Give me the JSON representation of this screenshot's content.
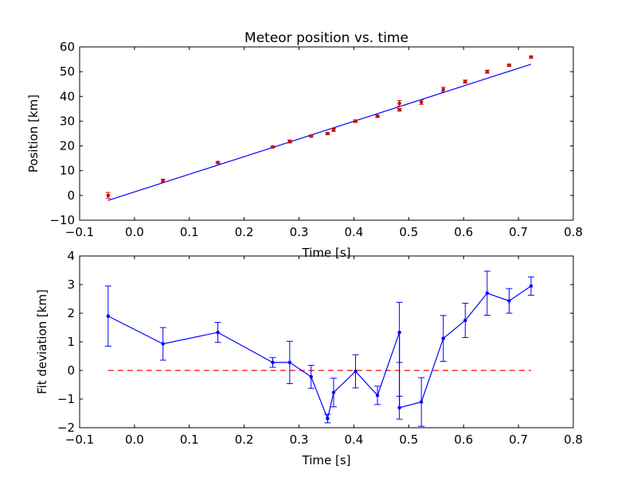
{
  "chart_data": [
    {
      "type": "scatter",
      "title": "Meteor position vs. time",
      "xlabel": "Time [s]",
      "ylabel": "Position [km]",
      "xlim": [
        -0.1,
        0.8
      ],
      "ylim": [
        -10,
        60
      ],
      "xticks": [
        "−0.1",
        "0.0",
        "0.1",
        "0.2",
        "0.3",
        "0.4",
        "0.5",
        "0.6",
        "0.7",
        "0.8"
      ],
      "yticks": [
        "−10",
        "0",
        "10",
        "20",
        "30",
        "40",
        "50",
        "60"
      ],
      "grid": false,
      "colors": {
        "points": "#ff0000",
        "fit": "#0000ff"
      },
      "series": [
        {
          "kind": "points-with-errorbars",
          "x": [
            -0.048,
            0.052,
            0.152,
            0.252,
            0.283,
            0.322,
            0.352,
            0.363,
            0.403,
            0.443,
            0.483,
            0.483,
            0.523,
            0.563,
            0.603,
            0.643,
            0.683,
            0.723
          ],
          "y": [
            0.0,
            6.0,
            13.3,
            19.6,
            21.8,
            24.0,
            25.0,
            26.5,
            30.0,
            32.0,
            37.2,
            34.6,
            37.7,
            42.8,
            46.0,
            50.0,
            52.6,
            55.9
          ],
          "yerr": [
            1.2,
            0.6,
            0.4,
            0.3,
            0.6,
            0.4,
            0.4,
            0.6,
            0.5,
            0.4,
            1.1,
            0.5,
            0.9,
            0.9,
            0.6,
            0.6,
            0.4,
            0.4
          ]
        },
        {
          "kind": "fit-line",
          "x": [
            -0.048,
            0.723
          ],
          "y": [
            -2.0,
            53.0
          ]
        }
      ]
    },
    {
      "type": "line",
      "title": "",
      "xlabel": "Time [s]",
      "ylabel": "Fit deviation [km]",
      "xlim": [
        -0.1,
        0.8
      ],
      "ylim": [
        -2,
        4
      ],
      "xticks": [
        "−0.1",
        "0.0",
        "0.1",
        "0.2",
        "0.3",
        "0.4",
        "0.5",
        "0.6",
        "0.7",
        "0.8"
      ],
      "yticks": [
        "−2",
        "−1",
        "0",
        "1",
        "2",
        "3",
        "4"
      ],
      "grid": false,
      "colors": {
        "line": "#0000ff",
        "zero": "#ff0000"
      },
      "series": [
        {
          "kind": "line-with-errorbars",
          "x": [
            -0.048,
            0.052,
            0.152,
            0.252,
            0.283,
            0.322,
            0.352,
            0.363,
            0.403,
            0.443,
            0.483,
            0.483,
            0.523,
            0.563,
            0.603,
            0.643,
            0.683,
            0.723
          ],
          "y": [
            1.9,
            0.93,
            1.33,
            0.28,
            0.28,
            -0.22,
            -1.68,
            -0.77,
            -0.03,
            -0.87,
            1.33,
            -1.3,
            -1.1,
            1.12,
            1.75,
            2.7,
            2.43,
            2.95
          ],
          "yerr": [
            1.05,
            0.57,
            0.35,
            0.17,
            0.74,
            0.4,
            0.15,
            0.5,
            0.58,
            0.32,
            1.05,
            0.4,
            0.85,
            0.8,
            0.6,
            0.77,
            0.43,
            0.32
          ]
        },
        {
          "kind": "zero-line",
          "x": [
            -0.048,
            0.723
          ],
          "y": [
            0,
            0
          ]
        }
      ]
    }
  ]
}
